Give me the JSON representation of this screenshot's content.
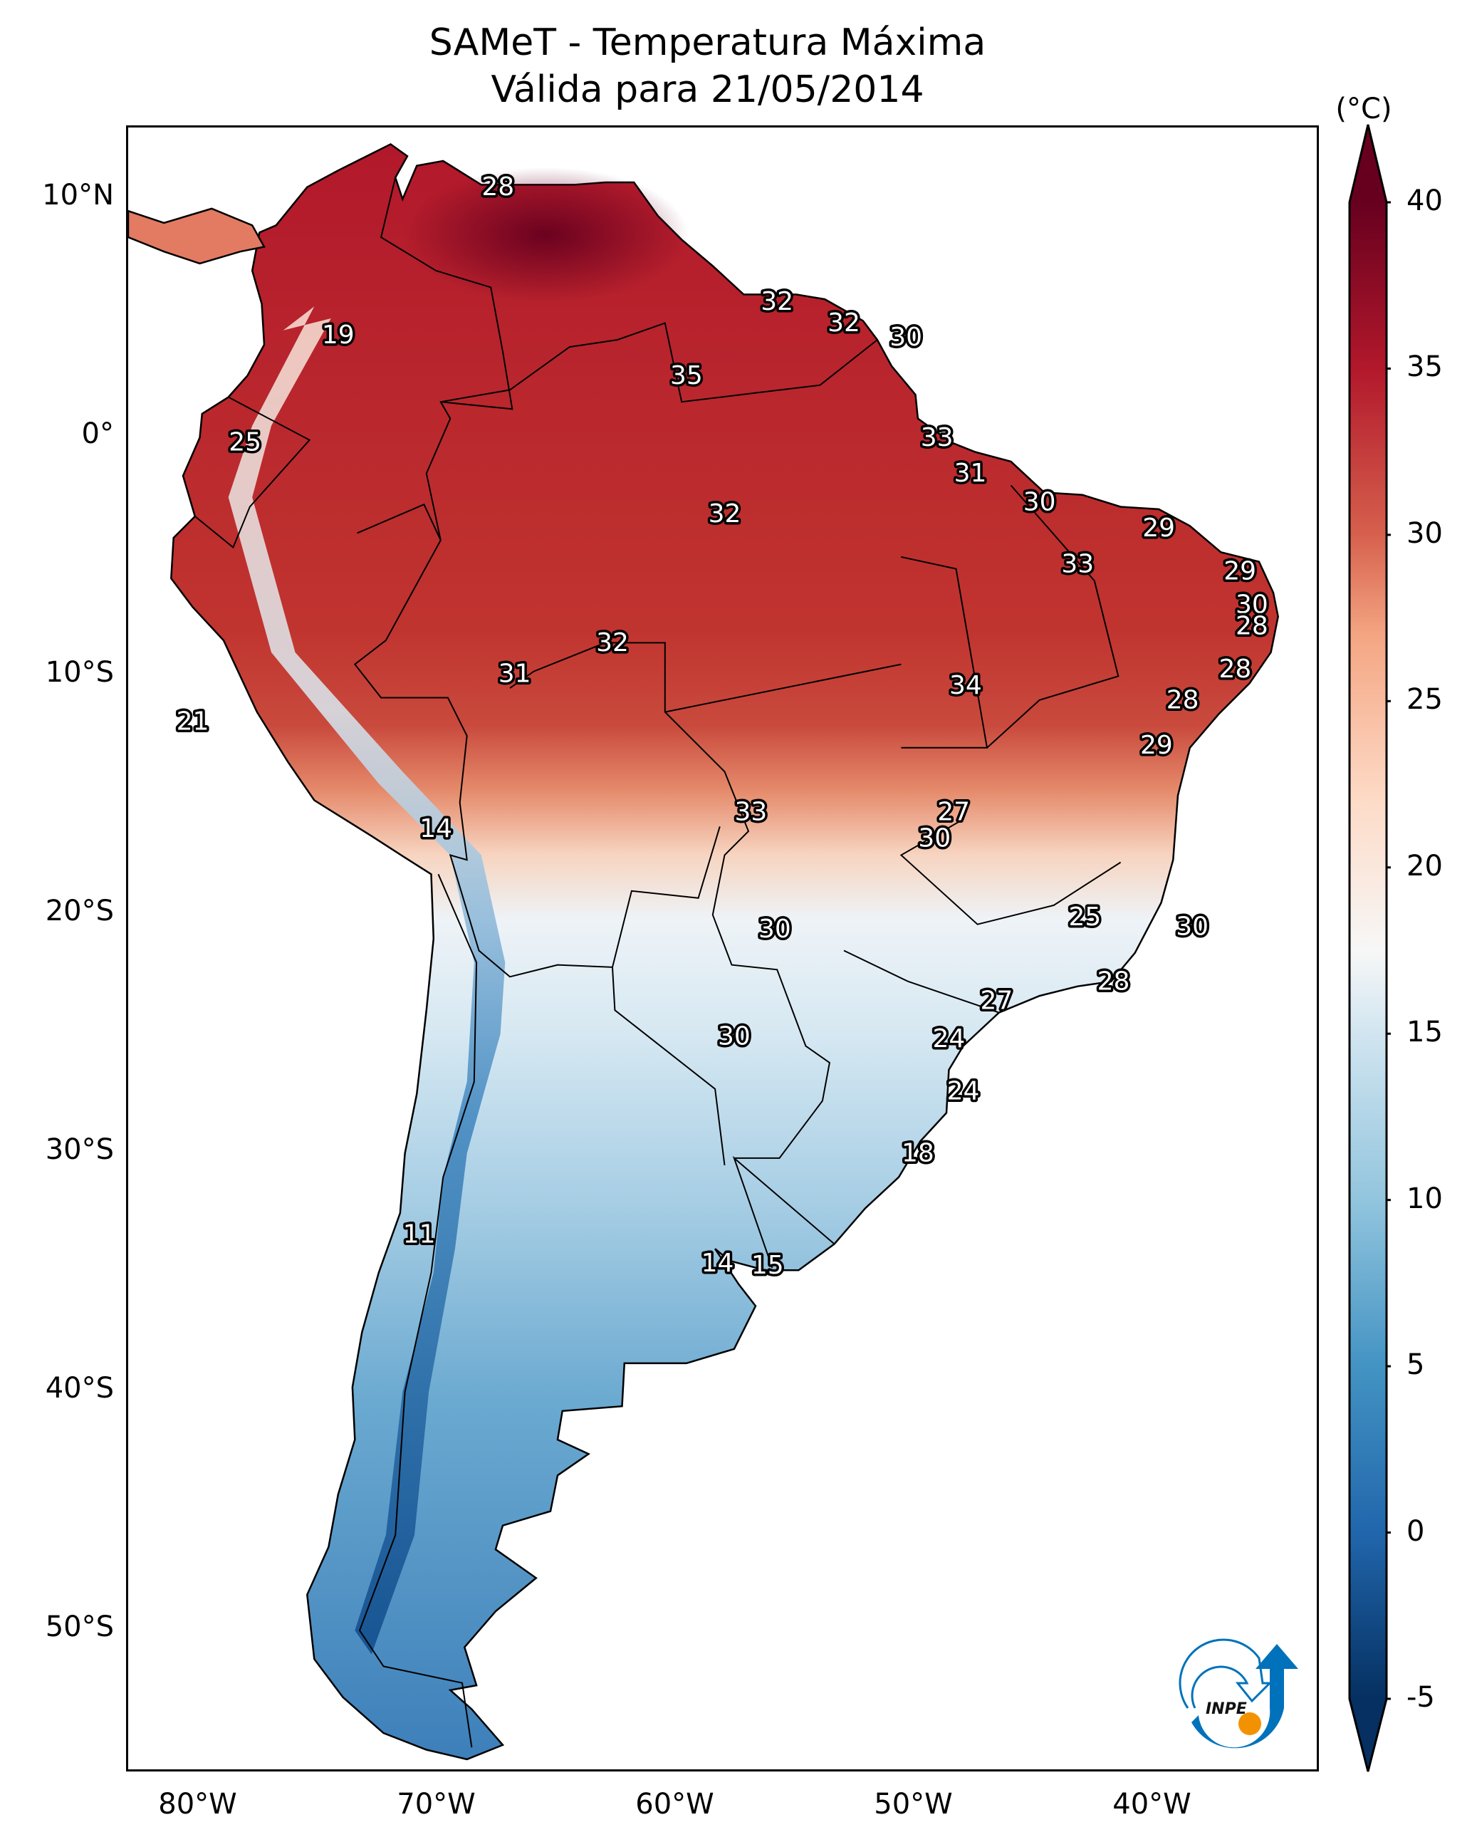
{
  "title": {
    "line1": "SAMeT - Temperatura Máxima",
    "line2": "Válida para 21/05/2014"
  },
  "map": {
    "projection": "PlateCarree",
    "extent": {
      "lon_min": -83,
      "lon_max": -33,
      "lat_min": -56,
      "lat_max": 13
    },
    "y_ticks": [
      {
        "lat": 10,
        "label": "10°N"
      },
      {
        "lat": 0,
        "label": "0°"
      },
      {
        "lat": -10,
        "label": "10°S"
      },
      {
        "lat": -20,
        "label": "20°S"
      },
      {
        "lat": -30,
        "label": "30°S"
      },
      {
        "lat": -40,
        "label": "40°S"
      },
      {
        "lat": -50,
        "label": "50°S"
      }
    ],
    "x_ticks": [
      {
        "lon": -80,
        "label": "80°W"
      },
      {
        "lon": -70,
        "label": "70°W"
      },
      {
        "lon": -60,
        "label": "60°W"
      },
      {
        "lon": -50,
        "label": "50°W"
      },
      {
        "lon": -40,
        "label": "40°W"
      }
    ],
    "value_labels": [
      {
        "lon": -67.5,
        "lat": 10.5,
        "value": "28"
      },
      {
        "lon": -74.2,
        "lat": 4.3,
        "value": "19"
      },
      {
        "lon": -55.8,
        "lat": 5.7,
        "value": "32"
      },
      {
        "lon": -53.0,
        "lat": 4.8,
        "value": "32"
      },
      {
        "lon": -50.4,
        "lat": 4.2,
        "value": "30"
      },
      {
        "lon": -59.6,
        "lat": 2.6,
        "value": "35"
      },
      {
        "lon": -78.1,
        "lat": -0.2,
        "value": "25"
      },
      {
        "lon": -49.1,
        "lat": 0.0,
        "value": "33"
      },
      {
        "lon": -47.7,
        "lat": -1.5,
        "value": "31"
      },
      {
        "lon": -44.8,
        "lat": -2.7,
        "value": "30"
      },
      {
        "lon": -58.0,
        "lat": -3.2,
        "value": "32"
      },
      {
        "lon": -39.8,
        "lat": -3.8,
        "value": "29"
      },
      {
        "lon": -43.2,
        "lat": -5.3,
        "value": "33"
      },
      {
        "lon": -36.4,
        "lat": -5.6,
        "value": "29"
      },
      {
        "lon": -35.9,
        "lat": -7.0,
        "value": "30"
      },
      {
        "lon": -35.9,
        "lat": -7.9,
        "value": "28"
      },
      {
        "lon": -36.6,
        "lat": -9.7,
        "value": "28"
      },
      {
        "lon": -38.8,
        "lat": -11.0,
        "value": "28"
      },
      {
        "lon": -62.7,
        "lat": -8.6,
        "value": "32"
      },
      {
        "lon": -66.8,
        "lat": -9.9,
        "value": "31"
      },
      {
        "lon": -47.9,
        "lat": -10.4,
        "value": "34"
      },
      {
        "lon": -80.3,
        "lat": -11.9,
        "value": "21"
      },
      {
        "lon": -39.9,
        "lat": -12.9,
        "value": "29"
      },
      {
        "lon": -70.1,
        "lat": -16.4,
        "value": "14"
      },
      {
        "lon": -56.9,
        "lat": -15.7,
        "value": "33"
      },
      {
        "lon": -48.4,
        "lat": -15.7,
        "value": "27"
      },
      {
        "lon": -49.2,
        "lat": -16.8,
        "value": "30"
      },
      {
        "lon": -42.9,
        "lat": -20.1,
        "value": "25"
      },
      {
        "lon": -38.4,
        "lat": -20.5,
        "value": "30"
      },
      {
        "lon": -55.9,
        "lat": -20.6,
        "value": "30"
      },
      {
        "lon": -41.7,
        "lat": -22.8,
        "value": "28"
      },
      {
        "lon": -46.6,
        "lat": -23.6,
        "value": "27"
      },
      {
        "lon": -48.6,
        "lat": -25.2,
        "value": "24"
      },
      {
        "lon": -57.6,
        "lat": -25.1,
        "value": "30"
      },
      {
        "lon": -48.0,
        "lat": -27.4,
        "value": "24"
      },
      {
        "lon": -49.9,
        "lat": -30.0,
        "value": "18"
      },
      {
        "lon": -70.8,
        "lat": -33.4,
        "value": "11"
      },
      {
        "lon": -58.3,
        "lat": -34.6,
        "value": "14"
      },
      {
        "lon": -56.2,
        "lat": -34.7,
        "value": "15"
      }
    ]
  },
  "colorbar": {
    "unit": "(°C)",
    "min": -5,
    "max": 40,
    "extend": "both",
    "colormap": "RdBu_r",
    "ticks": [
      {
        "value": 40,
        "label": "40"
      },
      {
        "value": 35,
        "label": "35"
      },
      {
        "value": 30,
        "label": "30"
      },
      {
        "value": 25,
        "label": "25"
      },
      {
        "value": 20,
        "label": "20"
      },
      {
        "value": 15,
        "label": "15"
      },
      {
        "value": 10,
        "label": "10"
      },
      {
        "value": 5,
        "label": "5"
      },
      {
        "value": 0,
        "label": "0"
      },
      {
        "value": -5,
        "label": "-5"
      }
    ],
    "color_stops": [
      {
        "value": -5,
        "color": "#053061"
      },
      {
        "value": 0,
        "color": "#2166ac"
      },
      {
        "value": 5,
        "color": "#4393c3"
      },
      {
        "value": 10,
        "color": "#92c5de"
      },
      {
        "value": 15,
        "color": "#d1e5f0"
      },
      {
        "value": 17.5,
        "color": "#f7f7f7"
      },
      {
        "value": 22,
        "color": "#fddbc7"
      },
      {
        "value": 27,
        "color": "#f4a582"
      },
      {
        "value": 30,
        "color": "#d6604d"
      },
      {
        "value": 35,
        "color": "#b2182b"
      },
      {
        "value": 40,
        "color": "#67001f"
      }
    ]
  },
  "logo": {
    "text": "INPE",
    "blue": "#0072bb",
    "orange": "#f39200"
  }
}
